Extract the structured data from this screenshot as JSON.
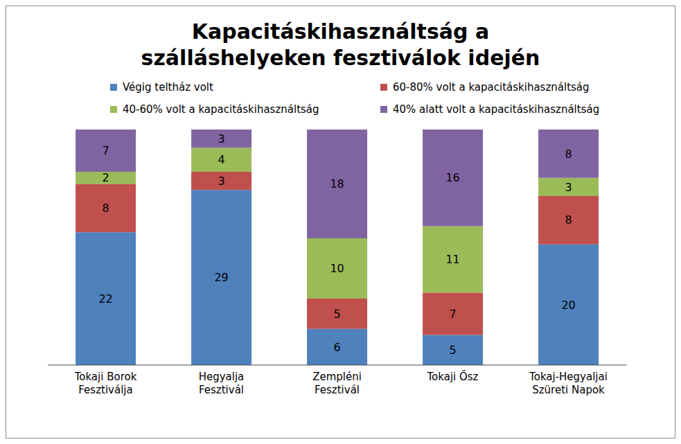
{
  "chart_data": {
    "type": "bar",
    "stacked": true,
    "data_labels": true,
    "tick_labels": "x",
    "legend": "top",
    "title": "Kapacitáskihasználtság a szálláshelyeken fesztiválok idején",
    "categories": [
      "Tokaji Borok Fesztiválja",
      "Hegyalja Fesztivál",
      "Zempléni Fesztivál",
      "Tokaji Ősz",
      "Tokaj-Hegyaljai Szüreti Napok"
    ],
    "series": [
      {
        "name": "Végig teltház volt",
        "color": "#4f81bd",
        "values": [
          22,
          29,
          6,
          5,
          20
        ]
      },
      {
        "name": "60-80% volt a kapacitáskihasználtság",
        "color": "#c0504d",
        "values": [
          8,
          3,
          5,
          7,
          8
        ]
      },
      {
        "name": "40-60% volt a kapacitáskihasználtság",
        "color": "#9bbb59",
        "values": [
          2,
          4,
          10,
          11,
          3
        ]
      },
      {
        "name": "40% alatt volt a kapacitáskihasználtság",
        "color": "#8064a2",
        "values": [
          7,
          3,
          18,
          16,
          8
        ]
      }
    ]
  }
}
